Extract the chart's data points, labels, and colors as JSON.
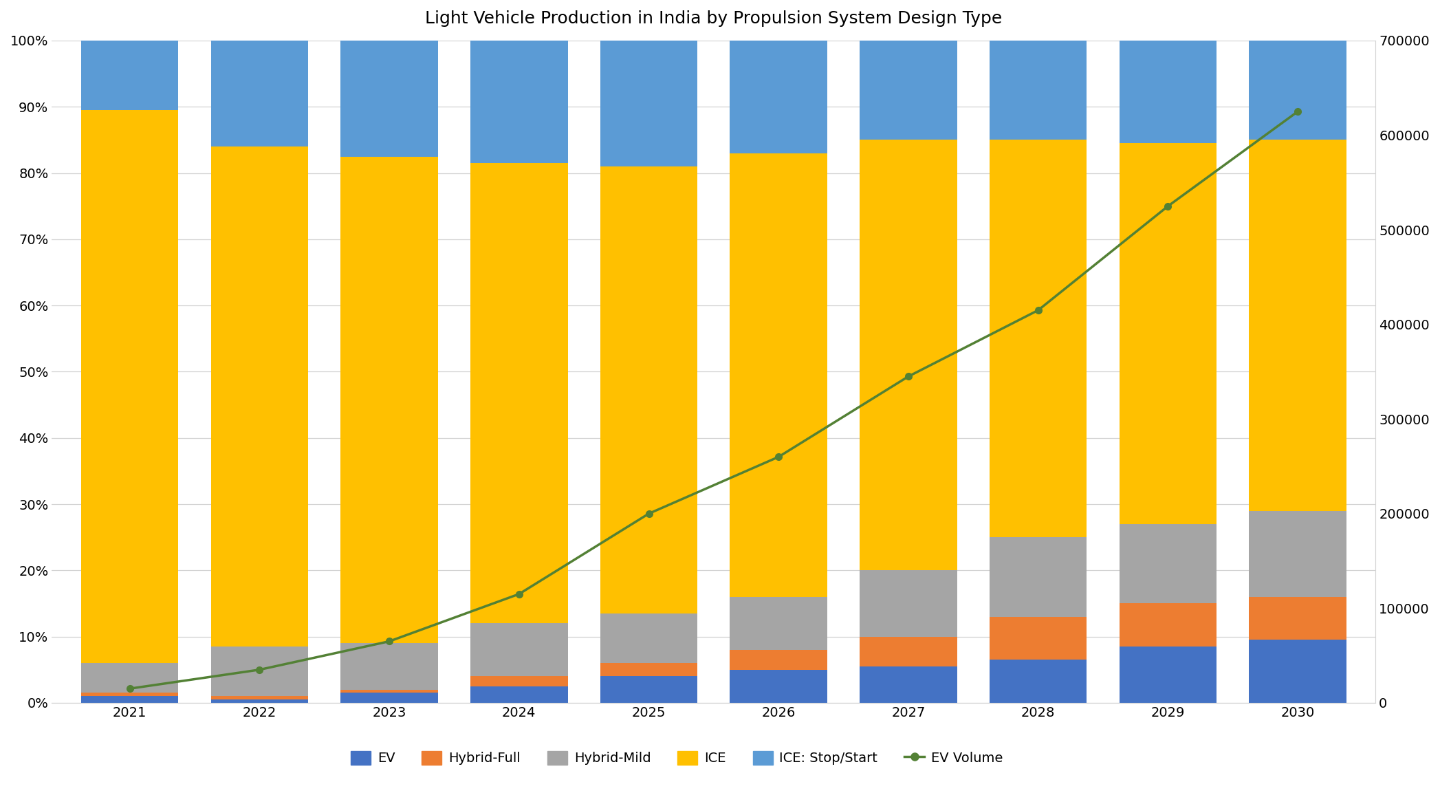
{
  "years": [
    2021,
    2022,
    2023,
    2024,
    2025,
    2026,
    2027,
    2028,
    2029,
    2030
  ],
  "ev_pct": [
    1.0,
    0.5,
    1.5,
    2.5,
    4.0,
    5.0,
    5.5,
    6.5,
    8.5,
    9.5
  ],
  "hybrid_full_pct": [
    0.5,
    0.5,
    0.5,
    1.5,
    2.0,
    3.0,
    4.5,
    6.5,
    6.5,
    6.5
  ],
  "hybrid_mild_pct": [
    4.5,
    7.5,
    7.0,
    8.0,
    7.5,
    8.0,
    10.0,
    12.0,
    12.0,
    13.0
  ],
  "ice_pct": [
    83.5,
    75.5,
    73.5,
    69.5,
    67.5,
    67.0,
    65.0,
    60.0,
    57.5,
    56.0
  ],
  "iss_pct": [
    10.5,
    16.0,
    17.5,
    18.5,
    19.0,
    17.0,
    15.0,
    15.0,
    15.5,
    15.0
  ],
  "ev_volume": [
    15000,
    35000,
    65000,
    115000,
    200000,
    260000,
    345000,
    415000,
    525000,
    625000
  ],
  "colors": {
    "ev": "#4472C4",
    "hybrid_full": "#ED7D31",
    "hybrid_mild": "#A5A5A5",
    "ice": "#FFC000",
    "iss": "#5B9BD5",
    "ev_volume": "#538135"
  },
  "title": "Light Vehicle Production in India by Propulsion System Design Type",
  "ylim_left": [
    0,
    100
  ],
  "ylim_right": [
    0,
    700000
  ],
  "yticks_right": [
    0,
    100000,
    200000,
    300000,
    400000,
    500000,
    600000,
    700000
  ],
  "yticks_left": [
    0,
    10,
    20,
    30,
    40,
    50,
    60,
    70,
    80,
    90,
    100
  ],
  "legend_labels": [
    "EV",
    "Hybrid-Full",
    "Hybrid-Mild",
    "ICE",
    "ICE: Stop/Start",
    "EV Volume"
  ]
}
